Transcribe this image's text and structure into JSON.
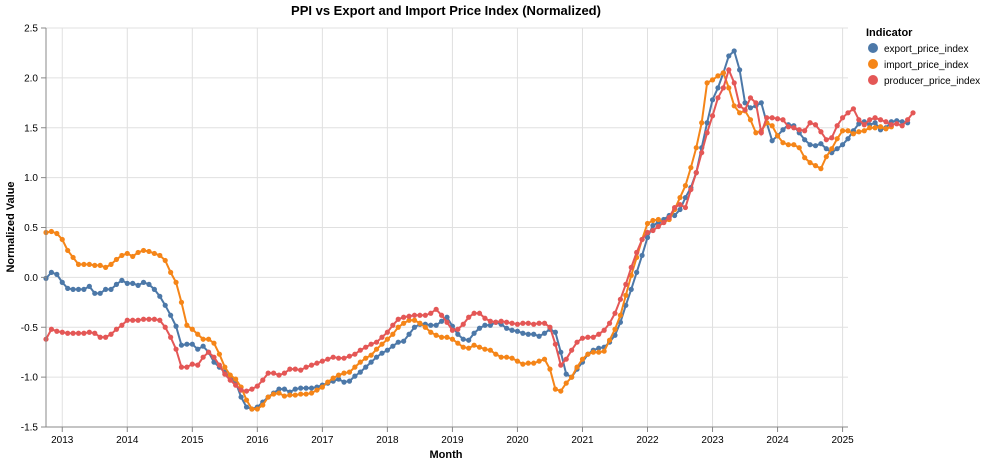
{
  "chart_data": {
    "type": "line",
    "title": "PPI vs Export and Import Price Index (Normalized)",
    "xlabel": "Month",
    "ylabel": "Normalized Value",
    "ylim": [
      -1.5,
      2.5
    ],
    "yticks": [
      -1.5,
      -1.0,
      -0.5,
      0.0,
      0.5,
      1.0,
      1.5,
      2.0,
      2.5
    ],
    "xlim": [
      "2012-10",
      "2025-02"
    ],
    "xticks": [
      "2013",
      "2014",
      "2015",
      "2016",
      "2017",
      "2018",
      "2019",
      "2020",
      "2021",
      "2022",
      "2023",
      "2024",
      "2025"
    ],
    "grid": true,
    "legend": {
      "title": "Indicator",
      "position": "right"
    },
    "x_start": "2012-10",
    "series": [
      {
        "name": "export_price_index",
        "color": "#4c78a8",
        "values": [
          -0.01,
          0.05,
          0.03,
          -0.05,
          -0.11,
          -0.12,
          -0.12,
          -0.12,
          -0.09,
          -0.16,
          -0.16,
          -0.12,
          -0.12,
          -0.07,
          -0.03,
          -0.06,
          -0.06,
          -0.08,
          -0.05,
          -0.07,
          -0.12,
          -0.19,
          -0.28,
          -0.38,
          -0.49,
          -0.68,
          -0.67,
          -0.67,
          -0.72,
          -0.69,
          -0.75,
          -0.85,
          -0.9,
          -0.95,
          -1.0,
          -1.05,
          -1.2,
          -1.3,
          -1.32,
          -1.3,
          -1.25,
          -1.2,
          -1.16,
          -1.12,
          -1.12,
          -1.15,
          -1.12,
          -1.11,
          -1.11,
          -1.11,
          -1.1,
          -1.08,
          -1.06,
          -1.04,
          -1.02,
          -1.05,
          -1.04,
          -0.99,
          -0.95,
          -0.9,
          -0.85,
          -0.8,
          -0.76,
          -0.73,
          -0.69,
          -0.65,
          -0.64,
          -0.57,
          -0.5,
          -0.47,
          -0.47,
          -0.48,
          -0.48,
          -0.44,
          -0.4,
          -0.49,
          -0.57,
          -0.62,
          -0.63,
          -0.56,
          -0.51,
          -0.48,
          -0.48,
          -0.45,
          -0.47,
          -0.51,
          -0.53,
          -0.54,
          -0.56,
          -0.57,
          -0.57,
          -0.59,
          -0.56,
          -0.52,
          -0.55,
          -0.75,
          -0.97,
          -1.0,
          -0.92,
          -0.85,
          -0.77,
          -0.73,
          -0.71,
          -0.7,
          -0.65,
          -0.58,
          -0.45,
          -0.28,
          -0.12,
          0.05,
          0.22,
          0.4,
          0.52,
          0.55,
          0.58,
          0.62,
          0.62,
          0.68,
          0.8,
          0.9,
          1.05,
          1.3,
          1.55,
          1.78,
          1.9,
          2.05,
          2.22,
          2.27,
          2.08,
          1.75,
          1.7,
          1.72,
          1.75,
          1.55,
          1.37,
          1.42,
          1.48,
          1.53,
          1.52,
          1.45,
          1.38,
          1.33,
          1.32,
          1.34,
          1.29,
          1.25,
          1.29,
          1.33,
          1.39,
          1.47,
          1.54,
          1.56,
          1.53,
          1.55,
          1.48,
          1.5,
          1.56,
          1.57,
          1.56,
          1.55
        ]
      },
      {
        "name": "import_price_index",
        "color": "#f58518",
        "values": [
          0.45,
          0.46,
          0.44,
          0.38,
          0.27,
          0.2,
          0.13,
          0.13,
          0.13,
          0.12,
          0.12,
          0.1,
          0.13,
          0.18,
          0.22,
          0.24,
          0.21,
          0.25,
          0.27,
          0.26,
          0.24,
          0.22,
          0.17,
          0.05,
          -0.05,
          -0.25,
          -0.48,
          -0.52,
          -0.57,
          -0.62,
          -0.62,
          -0.66,
          -0.77,
          -0.9,
          -0.98,
          -1.02,
          -1.1,
          -1.23,
          -1.32,
          -1.32,
          -1.28,
          -1.2,
          -1.17,
          -1.16,
          -1.19,
          -1.18,
          -1.18,
          -1.17,
          -1.17,
          -1.16,
          -1.13,
          -1.1,
          -1.05,
          -1.01,
          -0.98,
          -0.96,
          -0.95,
          -0.9,
          -0.85,
          -0.81,
          -0.78,
          -0.72,
          -0.67,
          -0.62,
          -0.57,
          -0.5,
          -0.46,
          -0.43,
          -0.43,
          -0.46,
          -0.5,
          -0.55,
          -0.58,
          -0.6,
          -0.6,
          -0.62,
          -0.66,
          -0.7,
          -0.71,
          -0.68,
          -0.7,
          -0.72,
          -0.73,
          -0.77,
          -0.8,
          -0.8,
          -0.81,
          -0.84,
          -0.87,
          -0.86,
          -0.86,
          -0.84,
          -0.82,
          -0.92,
          -1.12,
          -1.14,
          -1.06,
          -1.0,
          -0.9,
          -0.82,
          -0.77,
          -0.75,
          -0.75,
          -0.74,
          -0.63,
          -0.52,
          -0.38,
          -0.18,
          0.02,
          0.2,
          0.38,
          0.54,
          0.57,
          0.58,
          0.55,
          0.58,
          0.68,
          0.8,
          0.92,
          1.1,
          1.3,
          1.55,
          1.95,
          1.98,
          2.02,
          2.05,
          1.9,
          1.72,
          1.65,
          1.67,
          1.58,
          1.45,
          1.47,
          1.55,
          1.52,
          1.42,
          1.35,
          1.33,
          1.33,
          1.3,
          1.2,
          1.15,
          1.12,
          1.09,
          1.21,
          1.29,
          1.39,
          1.47,
          1.47,
          1.44,
          1.46,
          1.47,
          1.5,
          1.5,
          1.51,
          1.49,
          1.51
        ]
      },
      {
        "name": "producer_price_index",
        "color": "#e45756",
        "values": [
          -0.62,
          -0.52,
          -0.54,
          -0.55,
          -0.56,
          -0.56,
          -0.56,
          -0.56,
          -0.55,
          -0.56,
          -0.6,
          -0.6,
          -0.57,
          -0.52,
          -0.48,
          -0.43,
          -0.43,
          -0.43,
          -0.42,
          -0.42,
          -0.42,
          -0.43,
          -0.5,
          -0.6,
          -0.72,
          -0.9,
          -0.9,
          -0.87,
          -0.88,
          -0.8,
          -0.75,
          -0.8,
          -0.88,
          -0.97,
          -1.03,
          -1.08,
          -1.13,
          -1.14,
          -1.12,
          -1.09,
          -1.03,
          -0.96,
          -0.96,
          -0.98,
          -0.96,
          -0.92,
          -0.92,
          -0.93,
          -0.9,
          -0.88,
          -0.86,
          -0.84,
          -0.82,
          -0.8,
          -0.81,
          -0.81,
          -0.79,
          -0.77,
          -0.73,
          -0.7,
          -0.67,
          -0.65,
          -0.6,
          -0.55,
          -0.48,
          -0.42,
          -0.4,
          -0.39,
          -0.38,
          -0.38,
          -0.38,
          -0.36,
          -0.32,
          -0.38,
          -0.45,
          -0.53,
          -0.52,
          -0.47,
          -0.4,
          -0.36,
          -0.36,
          -0.41,
          -0.44,
          -0.45,
          -0.44,
          -0.45,
          -0.46,
          -0.47,
          -0.46,
          -0.46,
          -0.47,
          -0.46,
          -0.46,
          -0.5,
          -0.67,
          -0.88,
          -0.82,
          -0.73,
          -0.65,
          -0.61,
          -0.6,
          -0.6,
          -0.57,
          -0.53,
          -0.46,
          -0.36,
          -0.22,
          -0.07,
          0.1,
          0.25,
          0.38,
          0.45,
          0.47,
          0.51,
          0.55,
          0.6,
          0.7,
          0.73,
          0.7,
          0.88,
          1.05,
          1.25,
          1.45,
          1.62,
          1.8,
          1.9,
          2.08,
          1.95,
          1.72,
          1.68,
          1.8,
          1.75,
          1.45,
          1.6,
          1.6,
          1.59,
          1.58,
          1.51,
          1.5,
          1.48,
          1.47,
          1.55,
          1.53,
          1.46,
          1.38,
          1.4,
          1.52,
          1.6,
          1.65,
          1.69,
          1.58,
          1.53,
          1.58,
          1.6,
          1.58,
          1.56,
          1.53,
          1.54,
          1.52,
          1.58,
          1.65
        ]
      }
    ]
  }
}
